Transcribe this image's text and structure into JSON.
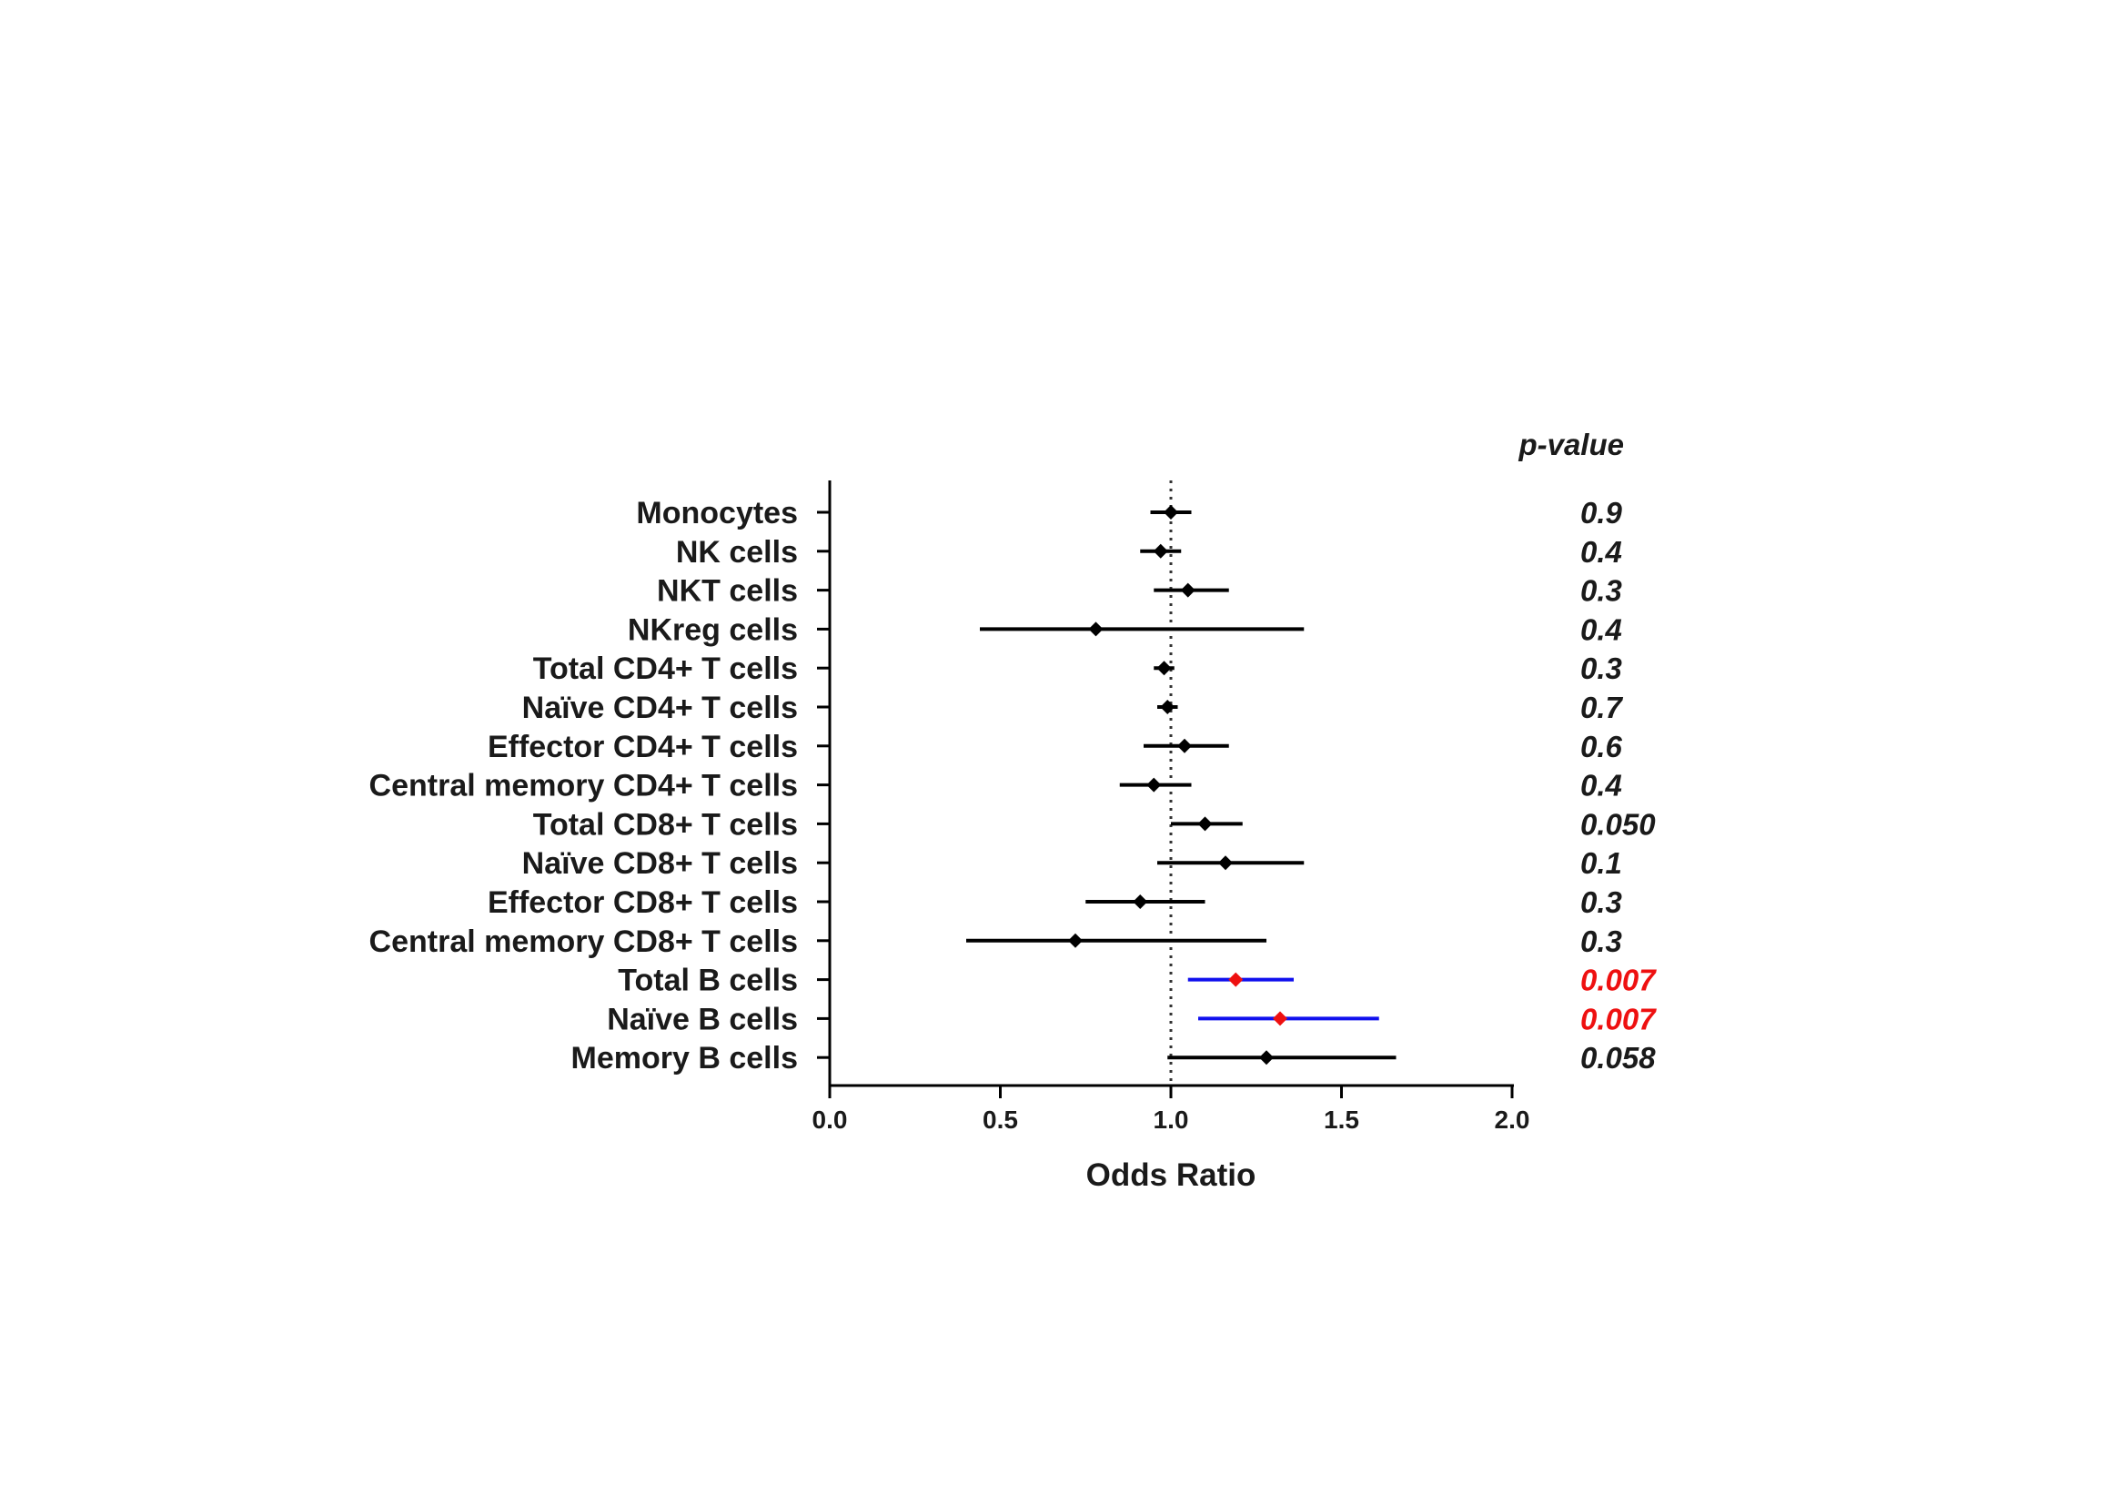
{
  "chart_data": {
    "type": "forest",
    "xlabel": "Odds Ratio",
    "xlim": [
      0.0,
      2.0
    ],
    "xticks": [
      "0.0",
      "0.5",
      "1.0",
      "1.5",
      "2.0"
    ],
    "reference_line": 1.0,
    "pvalue_header": "p-value",
    "colors": {
      "default_ci": "#000000",
      "default_point": "#000000",
      "highlight_ci": "#1010ee",
      "highlight_point": "#ee1010",
      "default_pval": "#1a1a1a",
      "highlight_pval": "#ee1010"
    },
    "rows": [
      {
        "label": "Monocytes",
        "or": 1.0,
        "lo": 0.94,
        "hi": 1.06,
        "pvalue": "0.9",
        "highlight": false
      },
      {
        "label": "NK cells",
        "or": 0.97,
        "lo": 0.91,
        "hi": 1.03,
        "pvalue": "0.4",
        "highlight": false
      },
      {
        "label": "NKT cells",
        "or": 1.05,
        "lo": 0.95,
        "hi": 1.17,
        "pvalue": "0.3",
        "highlight": false
      },
      {
        "label": "NKreg cells",
        "or": 0.78,
        "lo": 0.44,
        "hi": 1.39,
        "pvalue": "0.4",
        "highlight": false
      },
      {
        "label": "Total CD4+ T cells",
        "or": 0.98,
        "lo": 0.95,
        "hi": 1.01,
        "pvalue": "0.3",
        "highlight": false
      },
      {
        "label": "Naïve CD4+ T cells",
        "or": 0.99,
        "lo": 0.96,
        "hi": 1.02,
        "pvalue": "0.7",
        "highlight": false
      },
      {
        "label": "Effector CD4+ T cells",
        "or": 1.04,
        "lo": 0.92,
        "hi": 1.17,
        "pvalue": "0.6",
        "highlight": false
      },
      {
        "label": "Central memory CD4+ T cells",
        "or": 0.95,
        "lo": 0.85,
        "hi": 1.06,
        "pvalue": "0.4",
        "highlight": false
      },
      {
        "label": "Total CD8+ T cells",
        "or": 1.1,
        "lo": 1.0,
        "hi": 1.21,
        "pvalue": "0.050",
        "highlight": false
      },
      {
        "label": "Naïve CD8+ T cells",
        "or": 1.16,
        "lo": 0.96,
        "hi": 1.39,
        "pvalue": "0.1",
        "highlight": false
      },
      {
        "label": "Effector CD8+ T cells",
        "or": 0.91,
        "lo": 0.75,
        "hi": 1.1,
        "pvalue": "0.3",
        "highlight": false
      },
      {
        "label": "Central memory CD8+ T cells",
        "or": 0.72,
        "lo": 0.4,
        "hi": 1.28,
        "pvalue": "0.3",
        "highlight": false
      },
      {
        "label": "Total B cells",
        "or": 1.19,
        "lo": 1.05,
        "hi": 1.36,
        "pvalue": "0.007",
        "highlight": true
      },
      {
        "label": "Naïve B cells",
        "or": 1.32,
        "lo": 1.08,
        "hi": 1.61,
        "pvalue": "0.007",
        "highlight": true
      },
      {
        "label": "Memory B cells",
        "or": 1.28,
        "lo": 0.99,
        "hi": 1.66,
        "pvalue": "0.058",
        "highlight": false
      }
    ]
  }
}
